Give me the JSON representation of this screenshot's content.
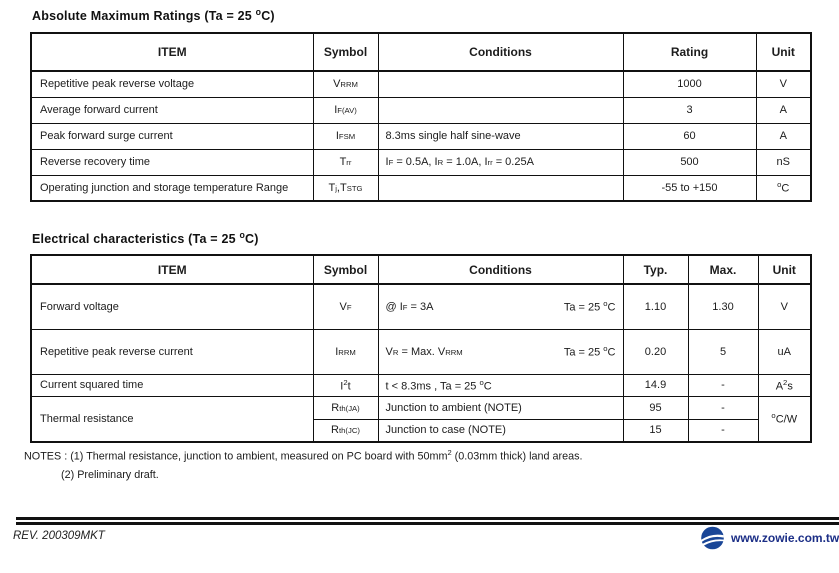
{
  "table1": {
    "title": "Absolute Maximum Ratings (Ta = 25 ^o^C)",
    "headers": [
      "ITEM",
      "Symbol",
      "Conditions",
      "Rating",
      "Unit"
    ],
    "rows": [
      {
        "item": "Repetitive peak reverse voltage",
        "symbol": "V~RRM~",
        "conditions": "",
        "rating": "1000",
        "unit": "V"
      },
      {
        "item": "Average forward current",
        "symbol": "I~F(AV)~",
        "conditions": "",
        "rating": "3",
        "unit": "A"
      },
      {
        "item": "Peak forward surge current",
        "symbol": "I~FSM~",
        "conditions": "8.3ms single half sine-wave",
        "rating": "60",
        "unit": "A"
      },
      {
        "item": "Reverse recovery time",
        "symbol": "T~rr~",
        "conditions": "I~F~ = 0.5A, I~R~ = 1.0A, I~rr~ = 0.25A",
        "rating": "500",
        "unit": "nS"
      },
      {
        "item": "Operating junction and storage temperature Range",
        "symbol": "T~j~,T~STG~",
        "conditions": "",
        "rating": "-55 to +150",
        "unit": "^o^C"
      }
    ]
  },
  "table2": {
    "title": "Electrical characteristics (Ta = 25 ^o^C)",
    "headers": [
      "ITEM",
      "Symbol",
      "Conditions",
      "Typ.",
      "Max.",
      "Unit"
    ],
    "rows": [
      {
        "item": "Forward voltage",
        "symbol": "V~F~",
        "cond_left": "@ I~F~ = 3A",
        "cond_right": "Ta = 25 ^o^C",
        "typ": "1.10",
        "max": "1.30",
        "unit": "V"
      },
      {
        "item": "Repetitive peak reverse current",
        "symbol": "I~RRM~",
        "cond_left": "V~R~ = Max. V~RRM~",
        "cond_right": "Ta = 25 ^o^C",
        "typ": "0.20",
        "max": "5",
        "unit": "uA"
      },
      {
        "item": "Current squared time",
        "symbol": "I^2^t",
        "cond_left": "t < 8.3ms , Ta = 25 ^o^C",
        "cond_right": "",
        "typ": "14.9",
        "max": "-",
        "unit": "A^2^s"
      },
      {
        "item": "Thermal resistance",
        "symbol": "R~th(JA)~",
        "cond_left": "Junction to ambient (NOTE)",
        "cond_right": "",
        "typ": "95",
        "max": "-",
        "unit": "^o^C/W"
      },
      {
        "item": "",
        "symbol": "R~th(JC)~",
        "cond_left": "Junction to case (NOTE)",
        "cond_right": "",
        "typ": "15",
        "max": "-",
        "unit": ""
      }
    ]
  },
  "notes": {
    "line1": "NOTES : (1) Thermal resistance, junction to ambient, measured on PC board with 50mm^2^ (0.03mm thick) land areas.",
    "line2": "(2) Preliminary draft."
  },
  "footer": {
    "rev": "REV. 200309MKT",
    "url": "www.zowie.com.tw",
    "logo_icon": "zowie-globe-logo",
    "colors": {
      "logo_blue": "#1a4697",
      "link_navy": "#1b2e86"
    }
  }
}
